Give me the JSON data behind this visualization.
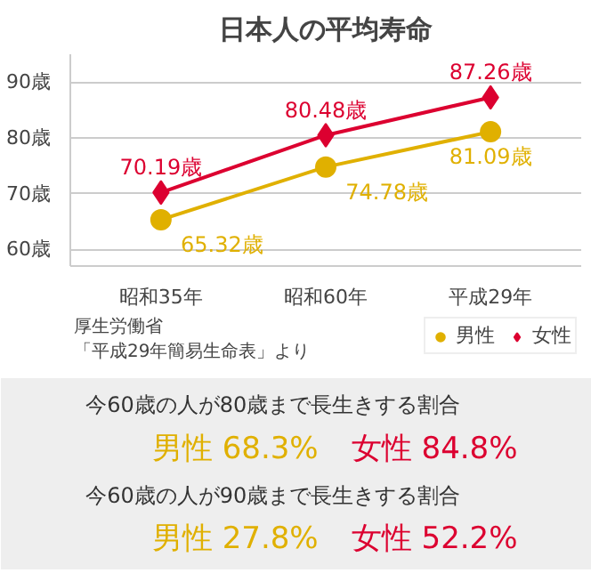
{
  "chart_data": [
    {
      "type": "line",
      "title": "日本人の平均寿命",
      "categories": [
        "昭和35年",
        "昭和60年",
        "平成29年"
      ],
      "series": [
        {
          "name": "男性",
          "color": "#e0b000",
          "marker": "circle",
          "values": [
            65.32,
            74.78,
            81.09
          ],
          "value_labels": [
            "65.32歳",
            "74.78歳",
            "81.09歳"
          ]
        },
        {
          "name": "女性",
          "color": "#dc0030",
          "marker": "diamond",
          "values": [
            70.19,
            80.48,
            87.26
          ],
          "value_labels": [
            "70.19歳",
            "80.48歳",
            "87.26歳"
          ]
        }
      ],
      "ylim": [
        57,
        95
      ],
      "yticks": [
        {
          "value": 60,
          "label": "60歳"
        },
        {
          "value": 70,
          "label": "70歳"
        },
        {
          "value": 80,
          "label": "80歳"
        },
        {
          "value": 90,
          "label": "90歳"
        }
      ],
      "grid": "y",
      "legend": "bottom right",
      "annotations": [
        "厚生労働省",
        "「平成29年簡易生命表」より"
      ]
    },
    {
      "type": "other",
      "annotations": [
        "今60歳の人が80歳まで長生きする割合",
        "男性 68.3%",
        "女性 84.8%",
        "今60歳の人が90歳まで長生きする割合",
        "男性 27.8%",
        "女性 52.2%"
      ],
      "colors": [
        "#333333",
        "#e0b000",
        "#dc0030",
        "#333333",
        "#e0b000",
        "#dc0030"
      ]
    }
  ]
}
